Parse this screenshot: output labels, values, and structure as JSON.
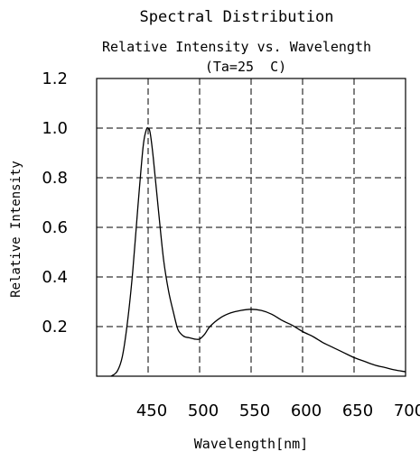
{
  "chart_data": {
    "type": "line",
    "title": "Spectral Distribution",
    "subtitle": "Relative Intensity vs. Wavelength",
    "condition": "(Ta=25  C)",
    "xlabel": "Wavelength[nm]",
    "ylabel": "Relative Intensity",
    "xlim": [
      400,
      700
    ],
    "ylim": [
      0,
      1.2
    ],
    "xticks": [
      450,
      500,
      550,
      600,
      650,
      700
    ],
    "xtick_labels": [
      "450",
      "500",
      "550",
      "600",
      "650",
      "700"
    ],
    "yticks": [
      0.2,
      0.4,
      0.6,
      0.8,
      1.0,
      1.2
    ],
    "ytick_labels": [
      "0.2",
      "0.4",
      "0.6",
      "0.8",
      "1.0",
      "1.2"
    ],
    "grid": true,
    "series": [
      {
        "color": "#000000",
        "x": [
          414,
          420,
          425,
          430,
          435,
          440,
          445,
          448,
          450,
          452,
          455,
          460,
          465,
          470,
          475,
          478,
          480,
          485,
          490,
          495,
          500,
          505,
          510,
          520,
          530,
          540,
          550,
          560,
          570,
          580,
          590,
          600,
          610,
          620,
          630,
          640,
          650,
          660,
          670,
          680,
          690,
          700
        ],
        "y": [
          0.0,
          0.02,
          0.08,
          0.22,
          0.42,
          0.68,
          0.92,
          0.99,
          1.0,
          0.98,
          0.88,
          0.67,
          0.47,
          0.34,
          0.25,
          0.2,
          0.18,
          0.16,
          0.155,
          0.15,
          0.15,
          0.17,
          0.2,
          0.235,
          0.255,
          0.265,
          0.27,
          0.265,
          0.25,
          0.225,
          0.205,
          0.18,
          0.16,
          0.135,
          0.115,
          0.095,
          0.075,
          0.06,
          0.045,
          0.035,
          0.025,
          0.018
        ]
      }
    ]
  }
}
